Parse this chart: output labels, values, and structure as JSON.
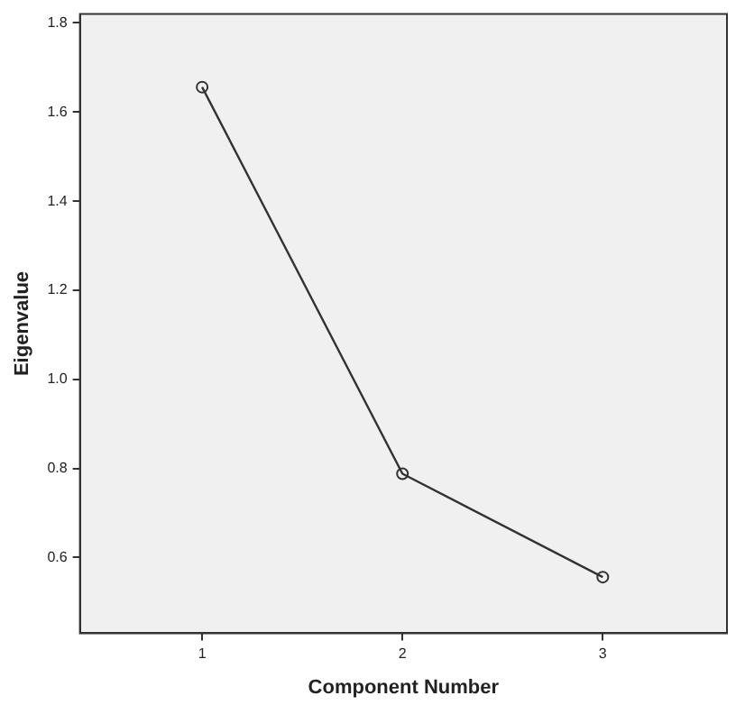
{
  "chart_data": {
    "type": "line",
    "xlabel": "Component Number",
    "ylabel": "Eigenvalue",
    "x": [
      1,
      2,
      3
    ],
    "series": [
      {
        "color": "#333333",
        "values": [
          1.656,
          0.788,
          0.556
        ]
      }
    ],
    "xlim": [
      0.39,
      3.62
    ],
    "xticks": [
      1,
      2,
      3
    ],
    "ylim": [
      0.43,
      1.82
    ],
    "yticks": [
      0.6,
      0.8,
      {
        "value": 1,
        "label": "1.0"
      },
      1.2,
      1.4,
      1.6,
      1.8
    ],
    "grid": false,
    "legend": false,
    "marker": "circle",
    "line_style": "solid"
  }
}
